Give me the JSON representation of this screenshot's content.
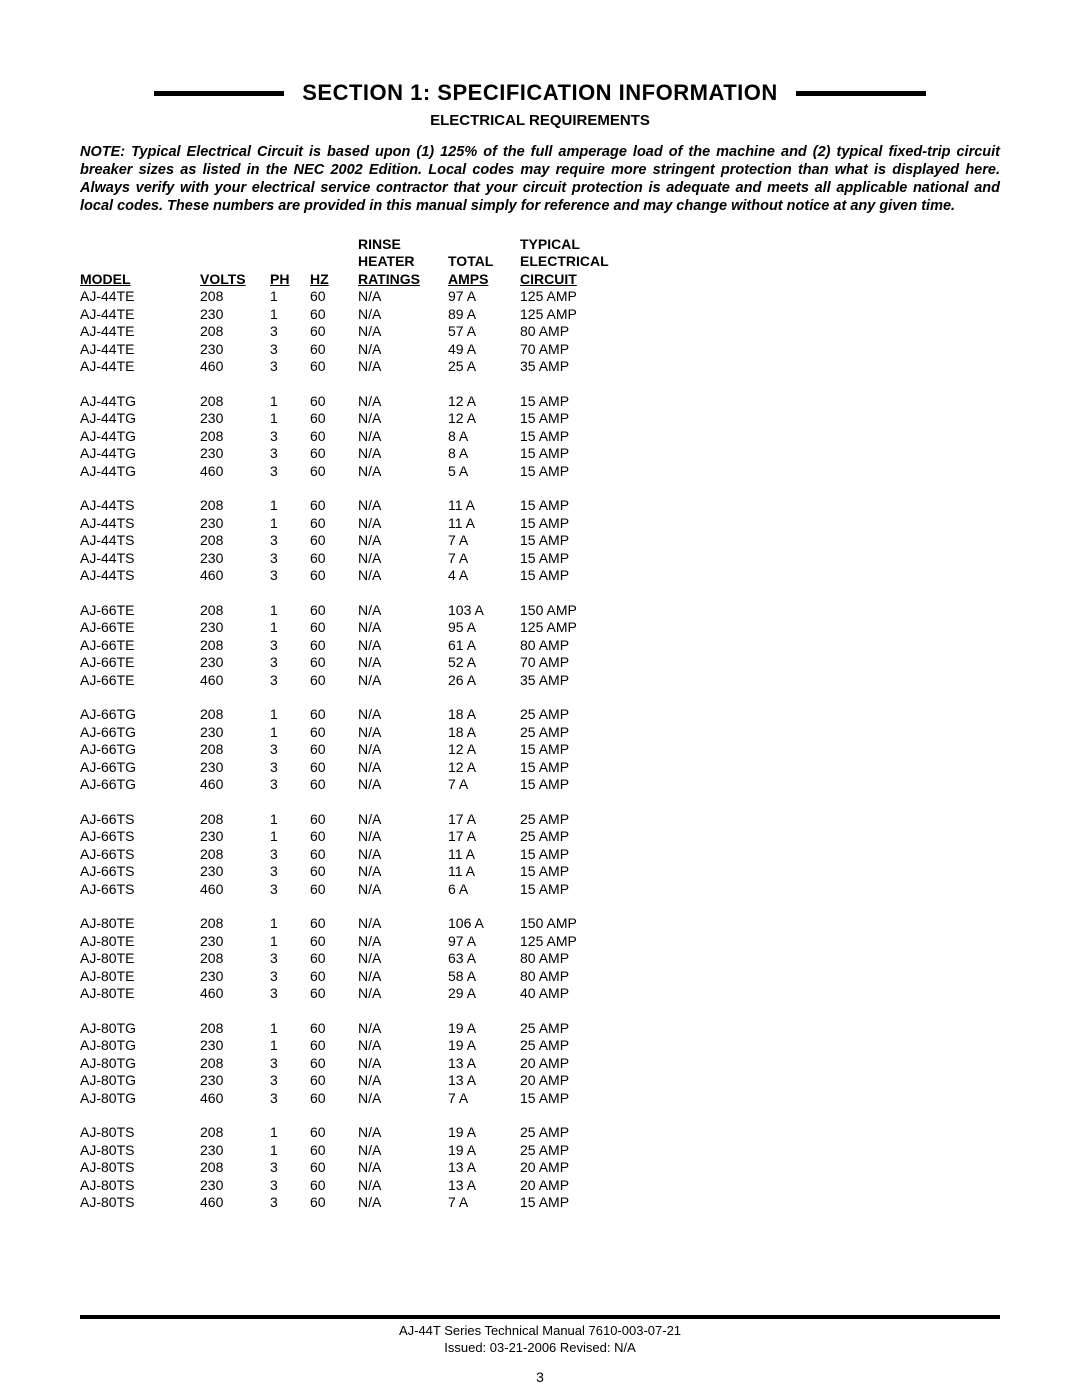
{
  "section_title": "SECTION 1: SPECIFICATION INFORMATION",
  "subtitle": "ELECTRICAL REQUIREMENTS",
  "note": "NOTE: Typical Electrical Circuit is based upon (1) 125% of the full amperage load of the machine and (2) typical fixed-trip circuit breaker sizes as listed in the NEC 2002 Edition. Local codes may require more stringent protection than what is displayed here. Always verify with your electrical service contractor that your circuit protection is adequate and meets all applicable national and local codes. These numbers are provided in this manual simply for reference and may change without notice at any given time.",
  "headers": {
    "model": "MODEL",
    "volts": "VOLTS",
    "ph": "PH",
    "hz": "HZ",
    "rinse1": "RINSE",
    "rinse2": "HEATER",
    "rinse3": "RATINGS",
    "amps1": "TOTAL",
    "amps2": "AMPS",
    "circ1": "TYPICAL",
    "circ2": "ELECTRICAL",
    "circ3": "CIRCUIT"
  },
  "groups": [
    [
      [
        "AJ-44TE",
        "208",
        "1",
        "60",
        "N/A",
        "97 A",
        "125 AMP"
      ],
      [
        "AJ-44TE",
        "230",
        "1",
        "60",
        "N/A",
        "89 A",
        "125 AMP"
      ],
      [
        "AJ-44TE",
        "208",
        "3",
        "60",
        "N/A",
        "57 A",
        "80 AMP"
      ],
      [
        "AJ-44TE",
        "230",
        "3",
        "60",
        "N/A",
        "49 A",
        "70 AMP"
      ],
      [
        "AJ-44TE",
        "460",
        "3",
        "60",
        "N/A",
        "25 A",
        "35 AMP"
      ]
    ],
    [
      [
        "AJ-44TG",
        "208",
        "1",
        "60",
        "N/A",
        "12 A",
        "15 AMP"
      ],
      [
        "AJ-44TG",
        "230",
        "1",
        "60",
        "N/A",
        "12 A",
        "15 AMP"
      ],
      [
        "AJ-44TG",
        "208",
        "3",
        "60",
        "N/A",
        "8 A",
        "15 AMP"
      ],
      [
        "AJ-44TG",
        "230",
        "3",
        "60",
        "N/A",
        "8 A",
        "15 AMP"
      ],
      [
        "AJ-44TG",
        "460",
        "3",
        "60",
        "N/A",
        "5 A",
        "15 AMP"
      ]
    ],
    [
      [
        "AJ-44TS",
        "208",
        "1",
        "60",
        "N/A",
        "11 A",
        "15 AMP"
      ],
      [
        "AJ-44TS",
        "230",
        "1",
        "60",
        "N/A",
        "11 A",
        "15 AMP"
      ],
      [
        "AJ-44TS",
        "208",
        "3",
        "60",
        "N/A",
        "7 A",
        "15 AMP"
      ],
      [
        "AJ-44TS",
        "230",
        "3",
        "60",
        "N/A",
        "7 A",
        "15 AMP"
      ],
      [
        "AJ-44TS",
        "460",
        "3",
        "60",
        "N/A",
        "4 A",
        "15 AMP"
      ]
    ],
    [
      [
        "AJ-66TE",
        "208",
        "1",
        "60",
        "N/A",
        "103 A",
        "150 AMP"
      ],
      [
        "AJ-66TE",
        "230",
        "1",
        "60",
        "N/A",
        "95 A",
        "125 AMP"
      ],
      [
        "AJ-66TE",
        "208",
        "3",
        "60",
        "N/A",
        "61 A",
        "80 AMP"
      ],
      [
        "AJ-66TE",
        "230",
        "3",
        "60",
        "N/A",
        "52 A",
        "70 AMP"
      ],
      [
        "AJ-66TE",
        "460",
        "3",
        "60",
        "N/A",
        "26 A",
        "35 AMP"
      ]
    ],
    [
      [
        "AJ-66TG",
        "208",
        "1",
        "60",
        "N/A",
        "18 A",
        "25 AMP"
      ],
      [
        "AJ-66TG",
        "230",
        "1",
        "60",
        "N/A",
        "18 A",
        "25 AMP"
      ],
      [
        "AJ-66TG",
        "208",
        "3",
        "60",
        "N/A",
        "12 A",
        "15 AMP"
      ],
      [
        "AJ-66TG",
        "230",
        "3",
        "60",
        "N/A",
        "12 A",
        "15 AMP"
      ],
      [
        "AJ-66TG",
        "460",
        "3",
        "60",
        "N/A",
        "7 A",
        "15 AMP"
      ]
    ],
    [
      [
        "AJ-66TS",
        "208",
        "1",
        "60",
        "N/A",
        "17 A",
        "25 AMP"
      ],
      [
        "AJ-66TS",
        "230",
        "1",
        "60",
        "N/A",
        "17 A",
        "25 AMP"
      ],
      [
        "AJ-66TS",
        "208",
        "3",
        "60",
        "N/A",
        "11 A",
        "15 AMP"
      ],
      [
        "AJ-66TS",
        "230",
        "3",
        "60",
        "N/A",
        "11 A",
        "15 AMP"
      ],
      [
        "AJ-66TS",
        "460",
        "3",
        "60",
        "N/A",
        "6 A",
        "15 AMP"
      ]
    ],
    [
      [
        "AJ-80TE",
        "208",
        "1",
        "60",
        "N/A",
        "106 A",
        "150 AMP"
      ],
      [
        "AJ-80TE",
        "230",
        "1",
        "60",
        "N/A",
        "97 A",
        "125 AMP"
      ],
      [
        "AJ-80TE",
        "208",
        "3",
        "60",
        "N/A",
        "63 A",
        "80 AMP"
      ],
      [
        "AJ-80TE",
        "230",
        "3",
        "60",
        "N/A",
        "58 A",
        "80 AMP"
      ],
      [
        "AJ-80TE",
        "460",
        "3",
        "60",
        "N/A",
        "29 A",
        "40 AMP"
      ]
    ],
    [
      [
        "AJ-80TG",
        "208",
        "1",
        "60",
        "N/A",
        "19 A",
        "25 AMP"
      ],
      [
        "AJ-80TG",
        "230",
        "1",
        "60",
        "N/A",
        "19 A",
        "25 AMP"
      ],
      [
        "AJ-80TG",
        "208",
        "3",
        "60",
        "N/A",
        "13 A",
        "20 AMP"
      ],
      [
        "AJ-80TG",
        "230",
        "3",
        "60",
        "N/A",
        "13 A",
        "20 AMP"
      ],
      [
        "AJ-80TG",
        "460",
        "3",
        "60",
        "N/A",
        "7 A",
        "15 AMP"
      ]
    ],
    [
      [
        "AJ-80TS",
        "208",
        "1",
        "60",
        "N/A",
        "19 A",
        "25 AMP"
      ],
      [
        "AJ-80TS",
        "230",
        "1",
        "60",
        "N/A",
        "19 A",
        "25 AMP"
      ],
      [
        "AJ-80TS",
        "208",
        "3",
        "60",
        "N/A",
        "13 A",
        "20 AMP"
      ],
      [
        "AJ-80TS",
        "230",
        "3",
        "60",
        "N/A",
        "13 A",
        "20 AMP"
      ],
      [
        "AJ-80TS",
        "460",
        "3",
        "60",
        "N/A",
        "7 A",
        "15 AMP"
      ]
    ]
  ],
  "footer_line1": "AJ-44T Series Technical Manual 7610-003-07-21",
  "footer_line2": "Issued: 03-21-2006  Revised: N/A",
  "page_number": "3"
}
